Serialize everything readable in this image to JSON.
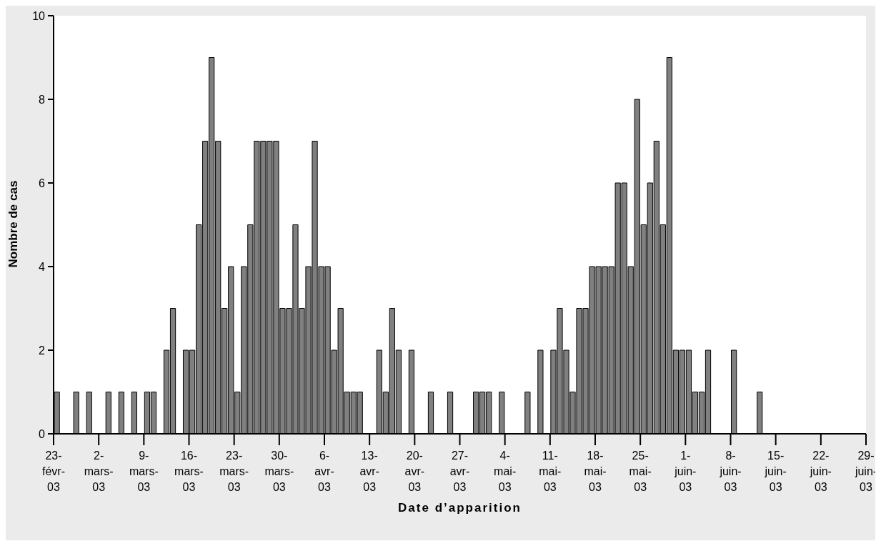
{
  "chart_data": {
    "type": "bar",
    "xlabel": "Date d’apparition",
    "ylabel": "Nombre de cas",
    "color": "#808080",
    "x": [
      "--02-23",
      "--02-26",
      "--02-28",
      "--03-03",
      "--03-05",
      "--03-07",
      "--03-09",
      "--03-10",
      "--03-12",
      "--03-13",
      "--03-15",
      "--03-16",
      "--03-17",
      "--03-18",
      "--03-19",
      "--03-20",
      "--03-21",
      "--03-22",
      "--03-23",
      "--03-24",
      "--03-25",
      "--03-26",
      "--03-27",
      "--03-28",
      "--03-29",
      "--03-30",
      "--03-31",
      "--04-01",
      "--04-02",
      "--04-03",
      "--04-04",
      "--04-05",
      "--04-06",
      "--04-07",
      "--04-08",
      "--04-09",
      "--04-10",
      "--04-11",
      "--04-14",
      "--04-15",
      "--04-16",
      "--04-17",
      "--04-19",
      "--04-22",
      "--04-25",
      "--04-29",
      "--04-30",
      "--05-01",
      "--05-03",
      "--05-07",
      "--05-09",
      "--05-11",
      "--05-12",
      "--05-13",
      "--05-14",
      "--05-15",
      "--05-16",
      "--05-17",
      "--05-18",
      "--05-19",
      "--05-20",
      "--05-21",
      "--05-22",
      "--05-23",
      "--05-24",
      "--05-25",
      "--05-26",
      "--05-27",
      "--05-28",
      "--05-29",
      "--05-30",
      "--05-31",
      "--06-01",
      "--06-02",
      "--06-03",
      "--06-04",
      "--06-08",
      "--06-12"
    ],
    "values": [
      1,
      1,
      1,
      1,
      1,
      1,
      1,
      1,
      2,
      3,
      2,
      2,
      5,
      7,
      9,
      7,
      3,
      4,
      1,
      4,
      5,
      7,
      7,
      7,
      7,
      3,
      3,
      5,
      3,
      4,
      7,
      4,
      4,
      2,
      3,
      1,
      1,
      1,
      2,
      1,
      3,
      2,
      2,
      1,
      1,
      1,
      1,
      1,
      1,
      1,
      2,
      2,
      3,
      2,
      1,
      3,
      3,
      4,
      4,
      4,
      4,
      6,
      6,
      4,
      8,
      5,
      6,
      7,
      5,
      9,
      2,
      2,
      2,
      1,
      1,
      2,
      2,
      1
    ],
    "xlim": [
      "--02-23",
      "--06-29"
    ],
    "xticks": [
      {
        "value": "--02-23",
        "label": "23-févr-03"
      },
      {
        "value": "--03-02",
        "label": "2-mars-03"
      },
      {
        "value": "--03-09",
        "label": "9-mars-03"
      },
      {
        "value": "--03-16",
        "label": "16-mars-03"
      },
      {
        "value": "--03-23",
        "label": "23-mars-03"
      },
      {
        "value": "--03-30",
        "label": "30-mars-03"
      },
      {
        "value": "--04-06",
        "label": "6-avr-03"
      },
      {
        "value": "--04-13",
        "label": "13-avr-03"
      },
      {
        "value": "--04-20",
        "label": "20-avr-03"
      },
      {
        "value": "--04-27",
        "label": "27-avr-03"
      },
      {
        "value": "--05-04",
        "label": "4-mai-03"
      },
      {
        "value": "--05-11",
        "label": "11-mai-03"
      },
      {
        "value": "--05-18",
        "label": "18-mai-03"
      },
      {
        "value": "--05-25",
        "label": "25-mai-03"
      },
      {
        "value": "--06-01",
        "label": "1-juin-03"
      },
      {
        "value": "--06-08",
        "label": "8-juin-03"
      },
      {
        "value": "--06-15",
        "label": "15-juin-03"
      },
      {
        "value": "--06-22",
        "label": "22-juin-03"
      },
      {
        "value": "--06-29",
        "label": "29-juin-03"
      }
    ],
    "ylim": [
      0,
      10
    ],
    "yticks": [
      0,
      2,
      4,
      6,
      8,
      10
    ]
  }
}
